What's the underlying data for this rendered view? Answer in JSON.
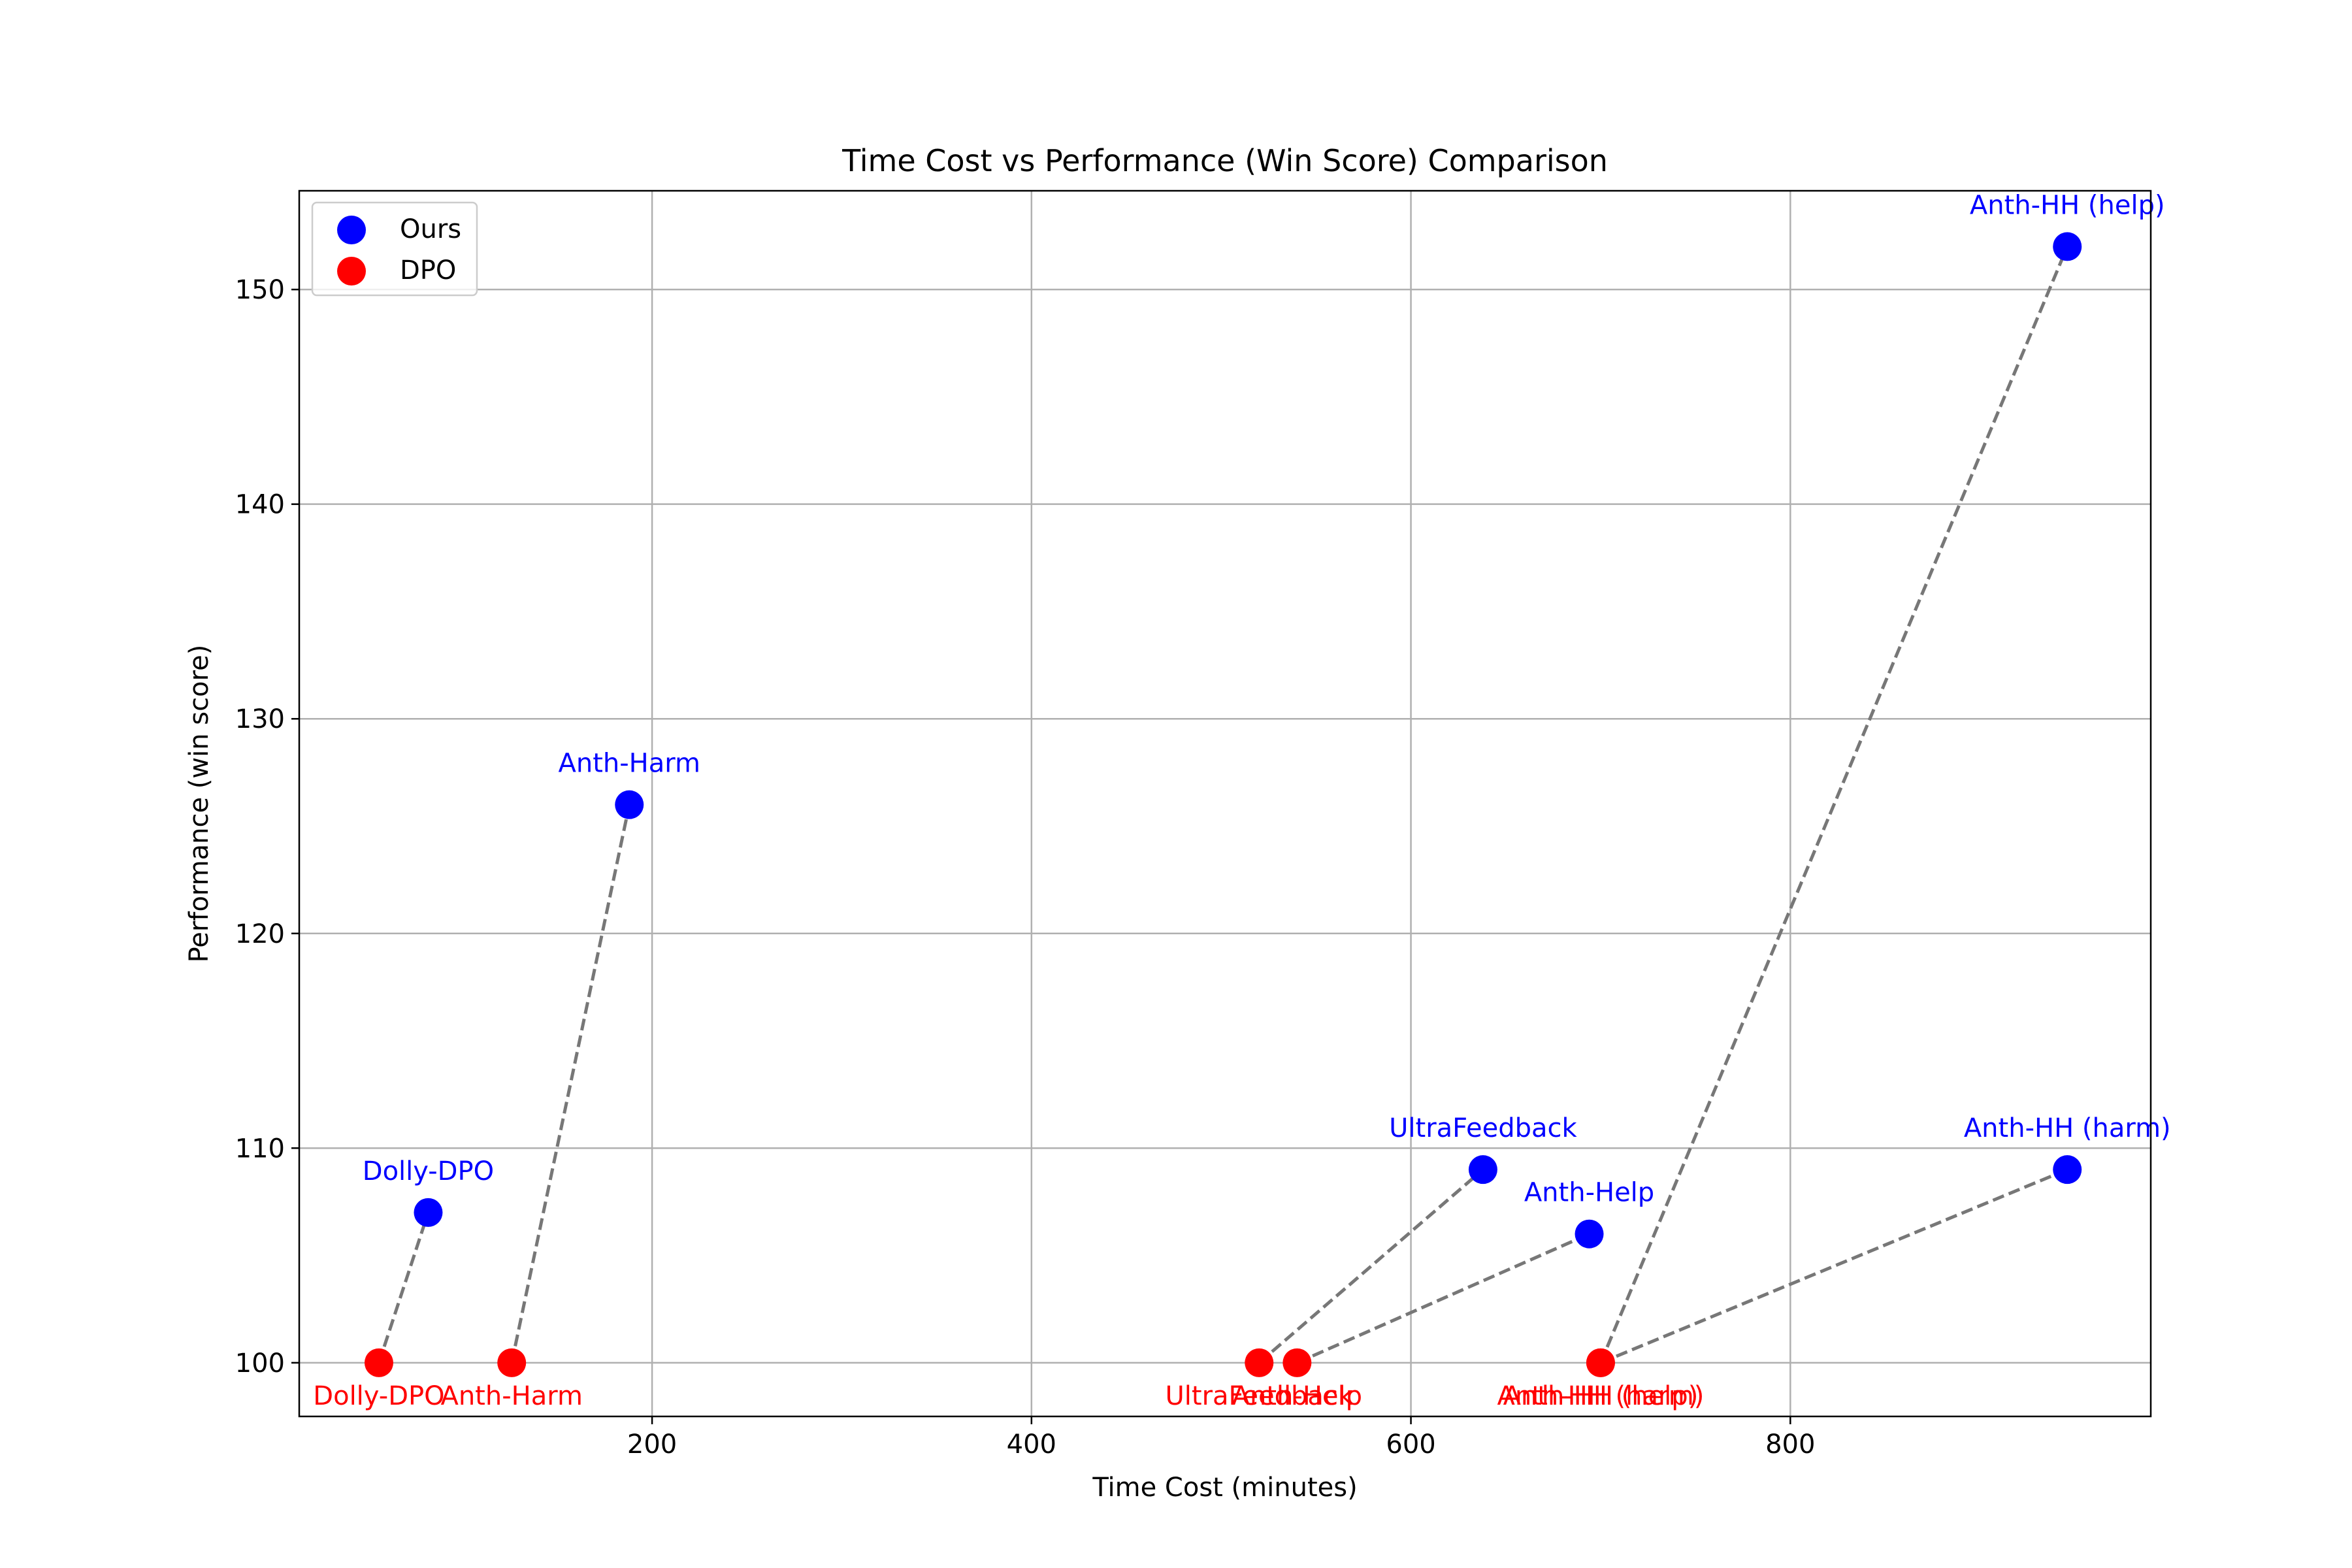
{
  "chart_data": {
    "type": "scatter",
    "title": "Time Cost vs Performance (Win Score) Comparison",
    "xlabel": "Time Cost (minutes)",
    "ylabel": "Performance (win score)",
    "xlim": [
      14,
      990
    ],
    "ylim": [
      97.5,
      154.6
    ],
    "xticks": [
      200,
      400,
      600,
      800
    ],
    "yticks": [
      100,
      110,
      120,
      130,
      140,
      150
    ],
    "grid": true,
    "legend_position": "top-left",
    "series": [
      {
        "name": "Ours",
        "color": "#0000ff",
        "label_position": "above",
        "points": [
          {
            "label": "Dolly-DPO",
            "x": 82,
            "y": 107
          },
          {
            "label": "Anth-Harm",
            "x": 188,
            "y": 126
          },
          {
            "label": "UltraFeedback",
            "x": 638,
            "y": 109
          },
          {
            "label": "Anth-Help",
            "x": 694,
            "y": 106
          },
          {
            "label": "Anth-HH (help)",
            "x": 946,
            "y": 152
          },
          {
            "label": "Anth-HH (harm)",
            "x": 946,
            "y": 109
          }
        ]
      },
      {
        "name": "DPO",
        "color": "#ff0000",
        "label_position": "below",
        "points": [
          {
            "label": "Dolly-DPO",
            "x": 56,
            "y": 100
          },
          {
            "label": "Anth-Harm",
            "x": 126,
            "y": 100
          },
          {
            "label": "UltraFeedback",
            "x": 520,
            "y": 100
          },
          {
            "label": "Anth-Help",
            "x": 540,
            "y": 100
          },
          {
            "label": "Anth-HH (help)",
            "x": 700,
            "y": 100
          },
          {
            "label": "Anth-HH (harm)",
            "x": 700,
            "y": 100
          }
        ]
      }
    ],
    "connections": [
      {
        "from": "Dolly-DPO",
        "to": "Dolly-DPO"
      },
      {
        "from": "Anth-Harm",
        "to": "Anth-Harm"
      },
      {
        "from": "UltraFeedback",
        "to": "UltraFeedback"
      },
      {
        "from": "Anth-Help",
        "to": "Anth-Help"
      },
      {
        "from": "Anth-HH (help)",
        "to": "Anth-HH (help)"
      },
      {
        "from": "Anth-HH (harm)",
        "to": "Anth-HH (harm)"
      }
    ],
    "connection_color": "#777777"
  }
}
